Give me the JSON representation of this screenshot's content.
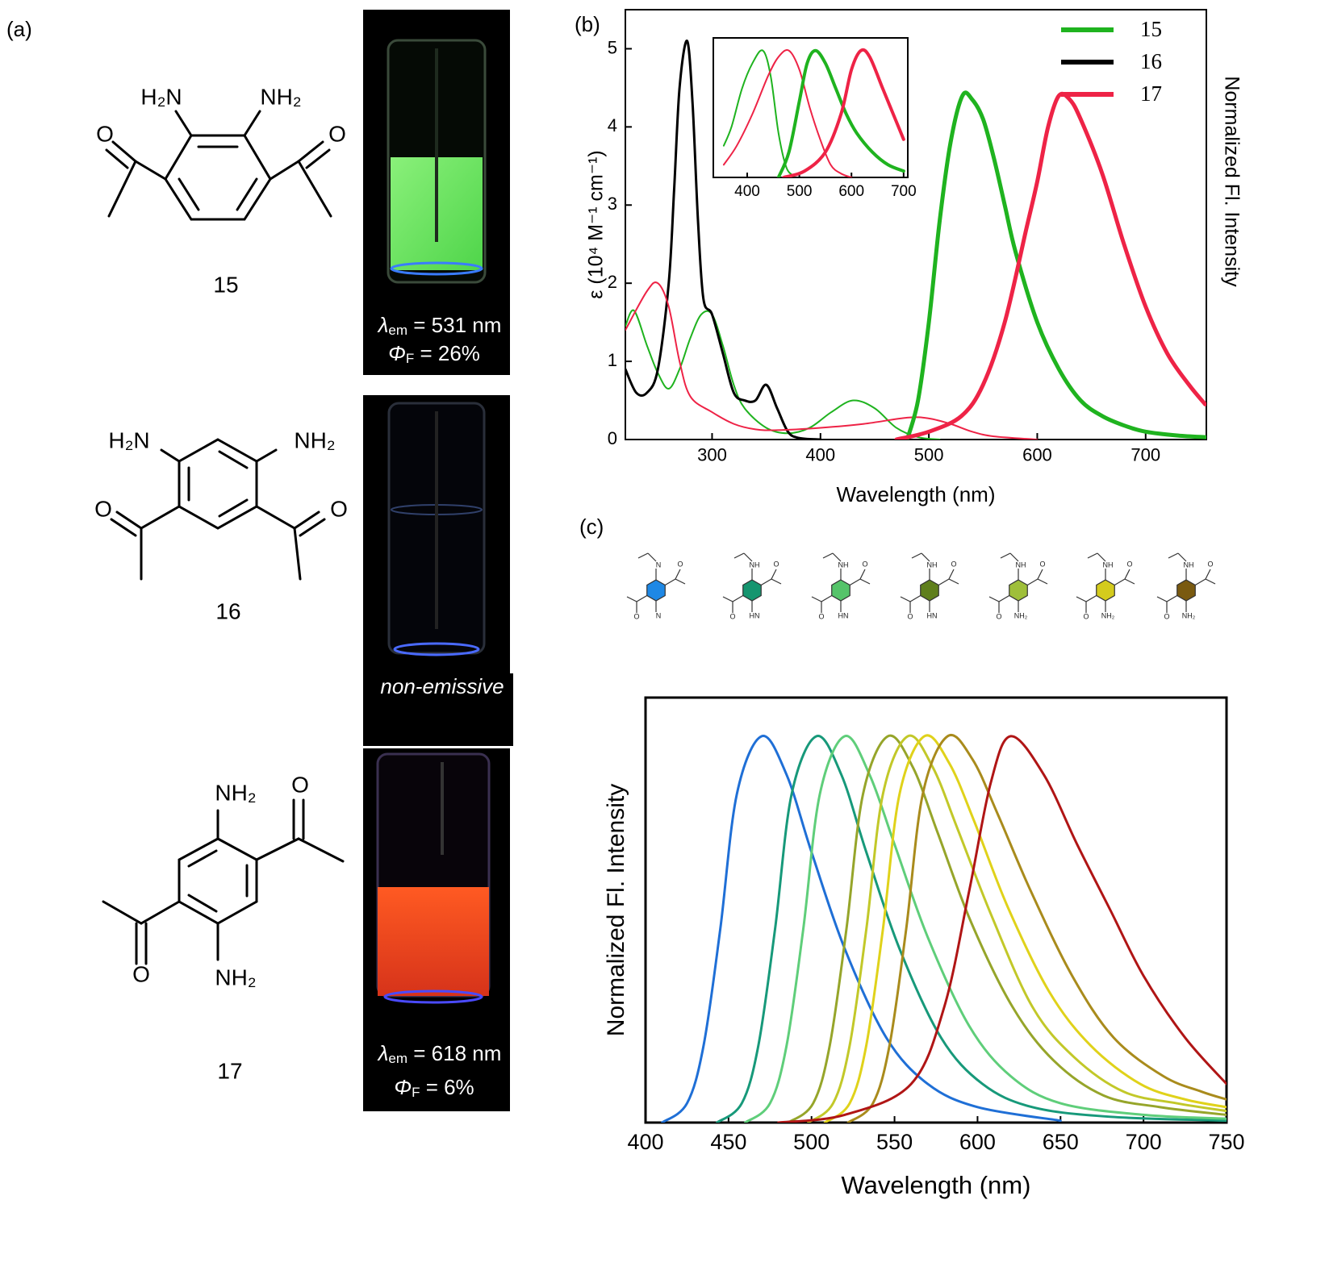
{
  "panel_labels": [
    "(a)",
    "(b)",
    "(c)"
  ],
  "panel_a": {
    "compounds": [
      {
        "number": "15",
        "labels": [
          "H₂N",
          "NH₂",
          "O",
          "O"
        ],
        "caption": {
          "symbol": "λ",
          "symbol_sub": "em",
          "value": " = 531 nm",
          "yield_symbol": "Φ",
          "yield_sub": "F",
          "yield": " = 26%"
        }
      },
      {
        "number": "16",
        "labels": [
          "H₂N",
          "NH₂",
          "O",
          "O"
        ],
        "caption_text": "non-emissive"
      },
      {
        "number": "17",
        "labels": [
          "NH₂",
          "O",
          "O",
          "NH₂"
        ],
        "caption": {
          "symbol": "λ",
          "symbol_sub": "em",
          "value": " = 618 nm",
          "yield_symbol": "Φ",
          "yield_sub": "F",
          "yield": " = 6%"
        }
      }
    ]
  },
  "panel_c_structures": [
    {
      "color": "#1e88e5",
      "top": "N",
      "bottom": "N",
      "carbonyls": [
        "O",
        "O"
      ]
    },
    {
      "color": "#15956f",
      "top": "NH",
      "bottom": "HN",
      "carbonyls": [
        "O",
        "O"
      ]
    },
    {
      "color": "#55c46a",
      "top": "NH",
      "bottom": "HN",
      "carbonyls": [
        "O",
        "O"
      ]
    },
    {
      "color": "#5f7f1c",
      "top": "NH",
      "bottom": "HN",
      "carbonyls": [
        "O",
        "O"
      ]
    },
    {
      "color": "#9fbf3a",
      "top": "NH",
      "bottom": "NH₂",
      "carbonyls": [
        "O",
        "O"
      ]
    },
    {
      "color": "#d4cb1c",
      "top": "NH",
      "bottom": "NH₂",
      "carbonyls": [
        "O",
        "O"
      ]
    },
    {
      "color": "#7a5a10",
      "top": "NH",
      "bottom": "NH₂",
      "carbonyls": [
        "O",
        "O"
      ]
    }
  ],
  "chart_data": [
    {
      "type": "line",
      "xlabel": "Wavelength (nm)",
      "ylabel": "ε (10⁴ M⁻¹ cm⁻¹)",
      "y2label": "Normalized Fl. Intensity",
      "xlim": [
        220,
        756
      ],
      "ylim": [
        0,
        5.5
      ],
      "xticks": [
        300,
        400,
        500,
        600,
        700
      ],
      "yticks": [
        0,
        1,
        2,
        3,
        4,
        5
      ],
      "legend": {
        "position": "upper right",
        "entries": [
          {
            "name": "15",
            "color": "#1fb31f"
          },
          {
            "name": "16",
            "color": "#000000"
          },
          {
            "name": "17",
            "color": "#ee2346"
          }
        ]
      },
      "series": [
        {
          "color": "#1fb31f",
          "linewidth": 2,
          "x": [
            220,
            228,
            240,
            250,
            260,
            270,
            280,
            290,
            300,
            310,
            320,
            330,
            350,
            370,
            390,
            410,
            430,
            450,
            470,
            490,
            510
          ],
          "values": [
            1.45,
            1.65,
            1.2,
            0.85,
            0.65,
            0.9,
            1.3,
            1.6,
            1.6,
            1.2,
            0.7,
            0.4,
            0.15,
            0.08,
            0.15,
            0.35,
            0.5,
            0.4,
            0.15,
            0.03,
            0
          ]
        },
        {
          "color": "#000000",
          "linewidth": 3,
          "x": [
            220,
            230,
            240,
            250,
            260,
            265,
            270,
            277,
            282,
            287,
            292,
            300,
            310,
            320,
            330,
            340,
            350,
            360,
            370,
            380,
            400
          ],
          "values": [
            0.9,
            0.6,
            0.6,
            0.9,
            2.0,
            3.2,
            4.5,
            5.1,
            4.3,
            2.8,
            1.8,
            1.6,
            1.1,
            0.6,
            0.5,
            0.5,
            0.7,
            0.4,
            0.1,
            0.02,
            0
          ]
        },
        {
          "color": "#ee2346",
          "linewidth": 2,
          "x": [
            220,
            240,
            250,
            260,
            270,
            280,
            300,
            320,
            340,
            360,
            400,
            440,
            480,
            500,
            520,
            540,
            560,
            600
          ],
          "values": [
            1.4,
            1.9,
            2.0,
            1.7,
            1.0,
            0.55,
            0.35,
            0.2,
            0.13,
            0.12,
            0.15,
            0.2,
            0.28,
            0.27,
            0.2,
            0.1,
            0.04,
            0
          ]
        },
        {
          "color": "#1fb31f",
          "linewidth": 5,
          "x": [
            480,
            490,
            500,
            510,
            520,
            531,
            540,
            550,
            560,
            570,
            580,
            600,
            620,
            640,
            660,
            680,
            700,
            730,
            755
          ],
          "values": [
            0,
            0.5,
            1.5,
            2.8,
            3.8,
            4.4,
            4.35,
            4.1,
            3.6,
            3.0,
            2.4,
            1.5,
            0.9,
            0.5,
            0.3,
            0.18,
            0.1,
            0.05,
            0.03
          ]
        },
        {
          "color": "#ee2346",
          "linewidth": 5,
          "x": [
            470,
            500,
            530,
            550,
            570,
            590,
            600,
            610,
            620,
            630,
            640,
            660,
            680,
            700,
            720,
            740,
            755
          ],
          "values": [
            0,
            0.1,
            0.3,
            0.7,
            1.5,
            2.7,
            3.3,
            4.0,
            4.4,
            4.35,
            4.1,
            3.4,
            2.5,
            1.7,
            1.1,
            0.7,
            0.45
          ]
        }
      ]
    },
    {
      "type": "line",
      "xlim": [
        335,
        708
      ],
      "ylim": [
        0,
        1.1
      ],
      "xticks": [
        400,
        500,
        600,
        700
      ],
      "series": [
        {
          "color": "#1fb31f",
          "linewidth": 2,
          "x": [
            355,
            370,
            390,
            410,
            430,
            445,
            460,
            475,
            490
          ],
          "values": [
            0.25,
            0.4,
            0.7,
            0.9,
            1,
            0.8,
            0.35,
            0.08,
            0.01
          ]
        },
        {
          "color": "#ee2346",
          "linewidth": 2,
          "x": [
            355,
            380,
            410,
            440,
            460,
            480,
            500,
            520,
            540,
            560,
            580,
            600
          ],
          "values": [
            0.1,
            0.25,
            0.5,
            0.8,
            0.95,
            1,
            0.85,
            0.55,
            0.3,
            0.1,
            0.03,
            0
          ]
        },
        {
          "color": "#1fb31f",
          "linewidth": 4,
          "x": [
            460,
            480,
            500,
            515,
            531,
            550,
            570,
            590,
            610,
            640,
            670,
            700
          ],
          "values": [
            0,
            0.2,
            0.6,
            0.9,
            1,
            0.9,
            0.7,
            0.5,
            0.35,
            0.2,
            0.1,
            0.05
          ]
        },
        {
          "color": "#ee2346",
          "linewidth": 4,
          "x": [
            470,
            510,
            550,
            580,
            600,
            618,
            635,
            660,
            680,
            700
          ],
          "values": [
            0,
            0.05,
            0.2,
            0.5,
            0.85,
            1,
            0.95,
            0.7,
            0.5,
            0.3
          ]
        }
      ]
    },
    {
      "type": "line",
      "xlabel": "Wavelength (nm)",
      "ylabel": "Normalized Fl. Intensity",
      "xlim": [
        400,
        750
      ],
      "ylim": [
        0,
        1.1
      ],
      "xticks": [
        400,
        450,
        500,
        550,
        600,
        650,
        700,
        750
      ],
      "series": [
        {
          "color": "#1f6fd6",
          "linewidth": 3,
          "x": [
            410,
            425,
            435,
            445,
            455,
            470,
            485,
            500,
            520,
            545,
            570,
            600,
            650
          ],
          "values": [
            0,
            0.05,
            0.2,
            0.5,
            0.85,
            1,
            0.9,
            0.7,
            0.45,
            0.22,
            0.1,
            0.04,
            0.005
          ]
        },
        {
          "color": "#17997a",
          "linewidth": 3,
          "x": [
            443,
            458,
            468,
            478,
            488,
            503,
            518,
            533,
            553,
            578,
            603,
            633,
            680,
            750
          ],
          "values": [
            0,
            0.05,
            0.2,
            0.5,
            0.85,
            1,
            0.9,
            0.7,
            0.45,
            0.22,
            0.1,
            0.04,
            0.015,
            0.005
          ]
        },
        {
          "color": "#5fce7a",
          "linewidth": 3,
          "x": [
            460,
            475,
            485,
            495,
            505,
            520,
            535,
            550,
            570,
            595,
            620,
            650,
            700,
            750
          ],
          "values": [
            0,
            0.05,
            0.2,
            0.5,
            0.85,
            1,
            0.9,
            0.72,
            0.48,
            0.25,
            0.12,
            0.05,
            0.02,
            0.01
          ]
        },
        {
          "color": "#96a52a",
          "linewidth": 3,
          "x": [
            486,
            501,
            511,
            521,
            531,
            546,
            561,
            576,
            596,
            621,
            646,
            676,
            710,
            750
          ],
          "values": [
            0,
            0.05,
            0.2,
            0.5,
            0.85,
            1,
            0.92,
            0.75,
            0.52,
            0.3,
            0.16,
            0.07,
            0.04,
            0.02
          ]
        },
        {
          "color": "#c2c829",
          "linewidth": 3,
          "x": [
            498,
            513,
            523,
            533,
            543,
            558,
            573,
            588,
            608,
            633,
            658,
            688,
            720,
            750
          ],
          "values": [
            0,
            0.05,
            0.2,
            0.5,
            0.85,
            1,
            0.92,
            0.76,
            0.54,
            0.3,
            0.17,
            0.08,
            0.05,
            0.03
          ]
        },
        {
          "color": "#e0d21a",
          "linewidth": 3,
          "x": [
            508,
            523,
            533,
            543,
            553,
            568,
            583,
            598,
            618,
            643,
            668,
            698,
            725,
            750
          ],
          "values": [
            0,
            0.05,
            0.2,
            0.5,
            0.85,
            1,
            0.93,
            0.78,
            0.56,
            0.34,
            0.2,
            0.1,
            0.06,
            0.04
          ]
        },
        {
          "color": "#a98b1c",
          "linewidth": 3,
          "x": [
            522,
            537,
            547,
            557,
            567,
            582,
            597,
            612,
            632,
            657,
            682,
            712,
            735,
            750
          ],
          "values": [
            0,
            0.05,
            0.2,
            0.5,
            0.85,
            1,
            0.94,
            0.8,
            0.6,
            0.38,
            0.22,
            0.12,
            0.08,
            0.06
          ]
        },
        {
          "color": "#b01515",
          "linewidth": 3,
          "x": [
            480,
            520,
            560,
            580,
            595,
            608,
            620,
            640,
            660,
            680,
            700,
            725,
            750
          ],
          "values": [
            0,
            0.02,
            0.1,
            0.3,
            0.6,
            0.88,
            1,
            0.9,
            0.72,
            0.55,
            0.38,
            0.22,
            0.1
          ]
        }
      ]
    }
  ]
}
